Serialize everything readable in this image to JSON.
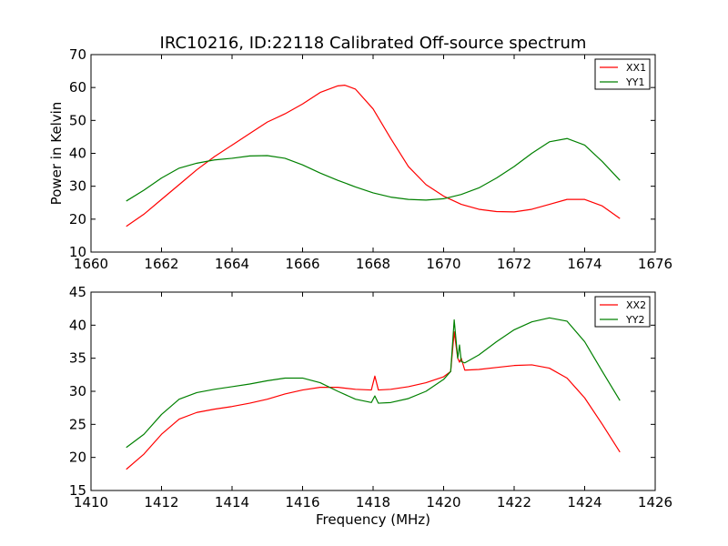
{
  "chart_data": [
    {
      "type": "line",
      "title": "IRC10216, ID:22118 Calibrated Off-source spectrum",
      "xlabel": "",
      "ylabel": "Power in Kelvin",
      "xlim": [
        1660,
        1676
      ],
      "ylim": [
        10,
        70
      ],
      "xticks": [
        1660,
        1662,
        1664,
        1666,
        1668,
        1670,
        1672,
        1674,
        1676
      ],
      "yticks": [
        10,
        20,
        30,
        40,
        50,
        60,
        70
      ],
      "grid": false,
      "legend": "top-right",
      "series": [
        {
          "name": "XX1",
          "color": "#ff0000",
          "x": [
            1661.0,
            1661.5,
            1662.0,
            1662.5,
            1663.0,
            1663.5,
            1664.0,
            1664.5,
            1665.0,
            1665.5,
            1666.0,
            1666.5,
            1667.0,
            1667.2,
            1667.5,
            1668.0,
            1668.5,
            1669.0,
            1669.5,
            1670.0,
            1670.5,
            1671.0,
            1671.5,
            1672.0,
            1672.5,
            1673.0,
            1673.5,
            1674.0,
            1674.5,
            1675.0
          ],
          "y": [
            17.8,
            21.5,
            26.0,
            30.5,
            35.0,
            39.0,
            42.5,
            46.0,
            49.5,
            52.0,
            55.0,
            58.5,
            60.5,
            60.7,
            59.5,
            53.5,
            44.5,
            36.0,
            30.5,
            27.0,
            24.5,
            23.0,
            22.3,
            22.2,
            23.0,
            24.5,
            26.0,
            26.0,
            24.0,
            20.2
          ]
        },
        {
          "name": "YY1",
          "color": "#008000",
          "x": [
            1661.0,
            1661.5,
            1662.0,
            1662.5,
            1663.0,
            1663.5,
            1664.0,
            1664.5,
            1665.0,
            1665.5,
            1666.0,
            1666.5,
            1667.0,
            1667.5,
            1668.0,
            1668.5,
            1669.0,
            1669.5,
            1670.0,
            1670.5,
            1671.0,
            1671.5,
            1672.0,
            1672.5,
            1673.0,
            1673.5,
            1674.0,
            1674.5,
            1675.0
          ],
          "y": [
            25.5,
            28.8,
            32.5,
            35.5,
            37.0,
            38.0,
            38.5,
            39.2,
            39.3,
            38.5,
            36.5,
            34.0,
            31.8,
            29.8,
            28.0,
            26.7,
            26.0,
            25.8,
            26.2,
            27.5,
            29.5,
            32.5,
            36.0,
            40.0,
            43.5,
            44.5,
            42.5,
            37.5,
            31.8
          ]
        }
      ]
    },
    {
      "type": "line",
      "title": "",
      "xlabel": "Frequency (MHz)",
      "ylabel": "",
      "xlim": [
        1410,
        1426
      ],
      "ylim": [
        15,
        45
      ],
      "xticks": [
        1410,
        1412,
        1414,
        1416,
        1418,
        1420,
        1422,
        1424,
        1426
      ],
      "yticks": [
        15,
        20,
        25,
        30,
        35,
        40,
        45
      ],
      "grid": false,
      "legend": "top-right",
      "series": [
        {
          "name": "XX2",
          "color": "#ff0000",
          "x": [
            1411.0,
            1411.5,
            1412.0,
            1412.5,
            1413.0,
            1413.5,
            1414.0,
            1414.5,
            1415.0,
            1415.5,
            1416.0,
            1416.5,
            1417.0,
            1417.5,
            1417.95,
            1418.05,
            1418.15,
            1418.5,
            1419.0,
            1419.5,
            1420.0,
            1420.2,
            1420.3,
            1420.4,
            1420.45,
            1420.5,
            1420.6,
            1421.0,
            1421.5,
            1422.0,
            1422.5,
            1423.0,
            1423.5,
            1424.0,
            1424.5,
            1425.0
          ],
          "y": [
            18.2,
            20.5,
            23.5,
            25.8,
            26.8,
            27.3,
            27.7,
            28.2,
            28.8,
            29.6,
            30.2,
            30.6,
            30.6,
            30.3,
            30.2,
            32.3,
            30.2,
            30.3,
            30.7,
            31.3,
            32.2,
            33.0,
            39.0,
            35.0,
            34.4,
            35.0,
            33.2,
            33.3,
            33.6,
            33.9,
            34.0,
            33.5,
            32.0,
            29.0,
            25.0,
            20.8
          ]
        },
        {
          "name": "YY2",
          "color": "#008000",
          "x": [
            1411.0,
            1411.5,
            1412.0,
            1412.5,
            1413.0,
            1413.5,
            1414.0,
            1414.5,
            1415.0,
            1415.5,
            1416.0,
            1416.5,
            1417.0,
            1417.5,
            1417.95,
            1418.05,
            1418.15,
            1418.5,
            1419.0,
            1419.5,
            1420.0,
            1420.2,
            1420.3,
            1420.4,
            1420.45,
            1420.5,
            1420.6,
            1421.0,
            1421.5,
            1422.0,
            1422.5,
            1423.0,
            1423.5,
            1424.0,
            1424.5,
            1425.0
          ],
          "y": [
            21.5,
            23.5,
            26.5,
            28.8,
            29.8,
            30.3,
            30.7,
            31.1,
            31.6,
            32.0,
            32.0,
            31.3,
            30.0,
            28.8,
            28.3,
            29.3,
            28.2,
            28.3,
            28.9,
            30.0,
            31.8,
            33.0,
            40.8,
            35.0,
            37.0,
            34.5,
            34.3,
            35.5,
            37.5,
            39.3,
            40.5,
            41.1,
            40.6,
            37.5,
            33.0,
            28.6
          ]
        }
      ]
    }
  ]
}
